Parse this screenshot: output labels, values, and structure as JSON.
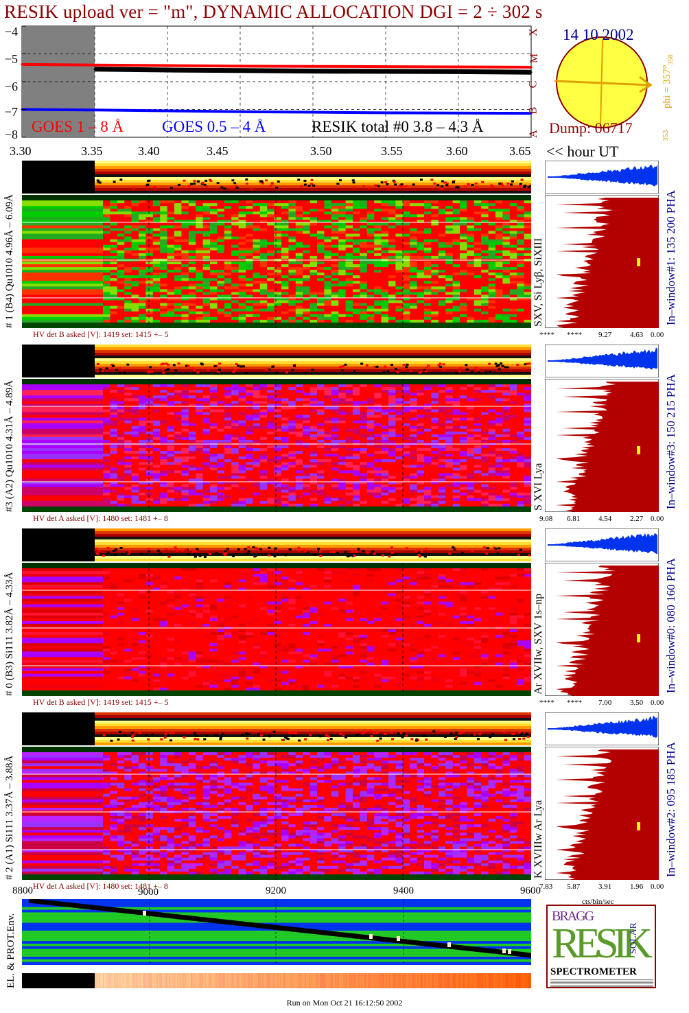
{
  "title": "RESIK upload ver = \"m\", DYNAMIC ALLOCATION  DGI =   2 ÷ 302 s",
  "light_curve": {
    "y_ticks": [
      "−4",
      "−5",
      "−6",
      "−7",
      "−8"
    ],
    "x_ticks": [
      "3.30",
      "3.35",
      "3.40",
      "3.45",
      "3.50",
      "3.55",
      "3.60",
      "3.65"
    ],
    "x_unit_label": "<< hour UT",
    "legend": {
      "goes_long": "GOES 1 – 8 Å",
      "goes_short": "GOES 0.5 – 4 Å",
      "resik": "RESIK total #0  3.8 – 4.3 Å"
    },
    "colors": {
      "goes_long": "#ff0000",
      "goes_short": "#0000ff",
      "resik": "#000000",
      "gap": "#808080"
    }
  },
  "sun": {
    "date": "14 10 2002",
    "dump": "Dump: 06717",
    "class_letters": [
      "X",
      "M",
      "C",
      "B",
      "A"
    ],
    "phi_label": "phi = 357°",
    "phi_sup": "358",
    "phi_low": "353"
  },
  "channels": [
    {
      "label": "# 1 (B4) Qu1010 4.96Å – 6.09Å",
      "hv": "HV det B asked [V]:  1419 set:  1415 +–   5",
      "lines": "SXV, Si Lyβ, SiXIII",
      "pha": "In–window#1:  135 200 PHA",
      "hist_ticks": [
        "****",
        "****",
        "9.27",
        "4.63",
        "0.00"
      ]
    },
    {
      "label": "#3 (A2) Qu1010  4.31Å – 4.89Å",
      "hv": "HV det A asked [V]:  1480 set:  1481 +–    8",
      "lines": "S XVI Lya",
      "pha": "In–window#3:  150 215 PHA",
      "hist_ticks": [
        "9.08",
        "6.81",
        "4.54",
        "2.27",
        "0.00"
      ]
    },
    {
      "label": "# 0 (B3) Si111  3.82Å – 4.33Å",
      "hv": "HV det B asked [V]:  1419 set:  1415 +–   5",
      "lines": "Ar XVIIw,  SXV 1s–np",
      "pha": "In–window#0:  080 160 PHA",
      "hist_ticks": [
        "****",
        "****",
        "7.00",
        "3.50",
        "0.00"
      ]
    },
    {
      "label": "# 2 (A1) Si111  3.37Å – 3.88Å",
      "hv": "HV det A asked [V]:  1480 set:  1481 +–    8",
      "lines": "K XVIIIw  Ar Lya",
      "pha": "In–window#2:  095 185 PHA",
      "hist_ticks": [
        "7.83",
        "5.87",
        "3.91",
        "1.96",
        "0.00"
      ]
    }
  ],
  "hist_unit": "cts/bin/sec",
  "env": {
    "label": "EL. & PROT.Env.",
    "x_ticks": [
      "8800",
      "9000",
      "9200",
      "9400",
      "9600"
    ]
  },
  "logo": {
    "bragg": "BRAGG",
    "resik": "RESIK",
    "solar": "SOLAR",
    "spectrometer": "SPECTROMETER"
  },
  "footer": "Run on Mon Oct 21 16:12:50 2002",
  "chart_data": {
    "type": "line",
    "title": "RESIK upload ver = \"m\", DYNAMIC ALLOCATION  DGI =   2 ÷ 302 s",
    "xlabel": "<< hour UT",
    "ylabel": "",
    "xlim": [
      3.3,
      3.65
    ],
    "ylim": [
      -8,
      -4
    ],
    "x": [
      3.3,
      3.35,
      3.4,
      3.45,
      3.5,
      3.55,
      3.6,
      3.65
    ],
    "series": [
      {
        "name": "GOES 1 – 8 Å",
        "values": [
          -5.38,
          -5.4,
          -5.42,
          -5.44,
          -5.45,
          -5.46,
          -5.47,
          -5.48
        ]
      },
      {
        "name": "GOES 0.5 – 4 Å",
        "values": [
          -7.0,
          -7.02,
          -7.05,
          -7.08,
          -7.1,
          -7.12,
          -7.13,
          -7.14
        ]
      },
      {
        "name": "RESIK total #0  3.8 – 4.3 Å",
        "values": [
          null,
          -5.55,
          -5.58,
          -5.6,
          -5.62,
          -5.63,
          -5.64,
          -5.66
        ]
      }
    ]
  }
}
